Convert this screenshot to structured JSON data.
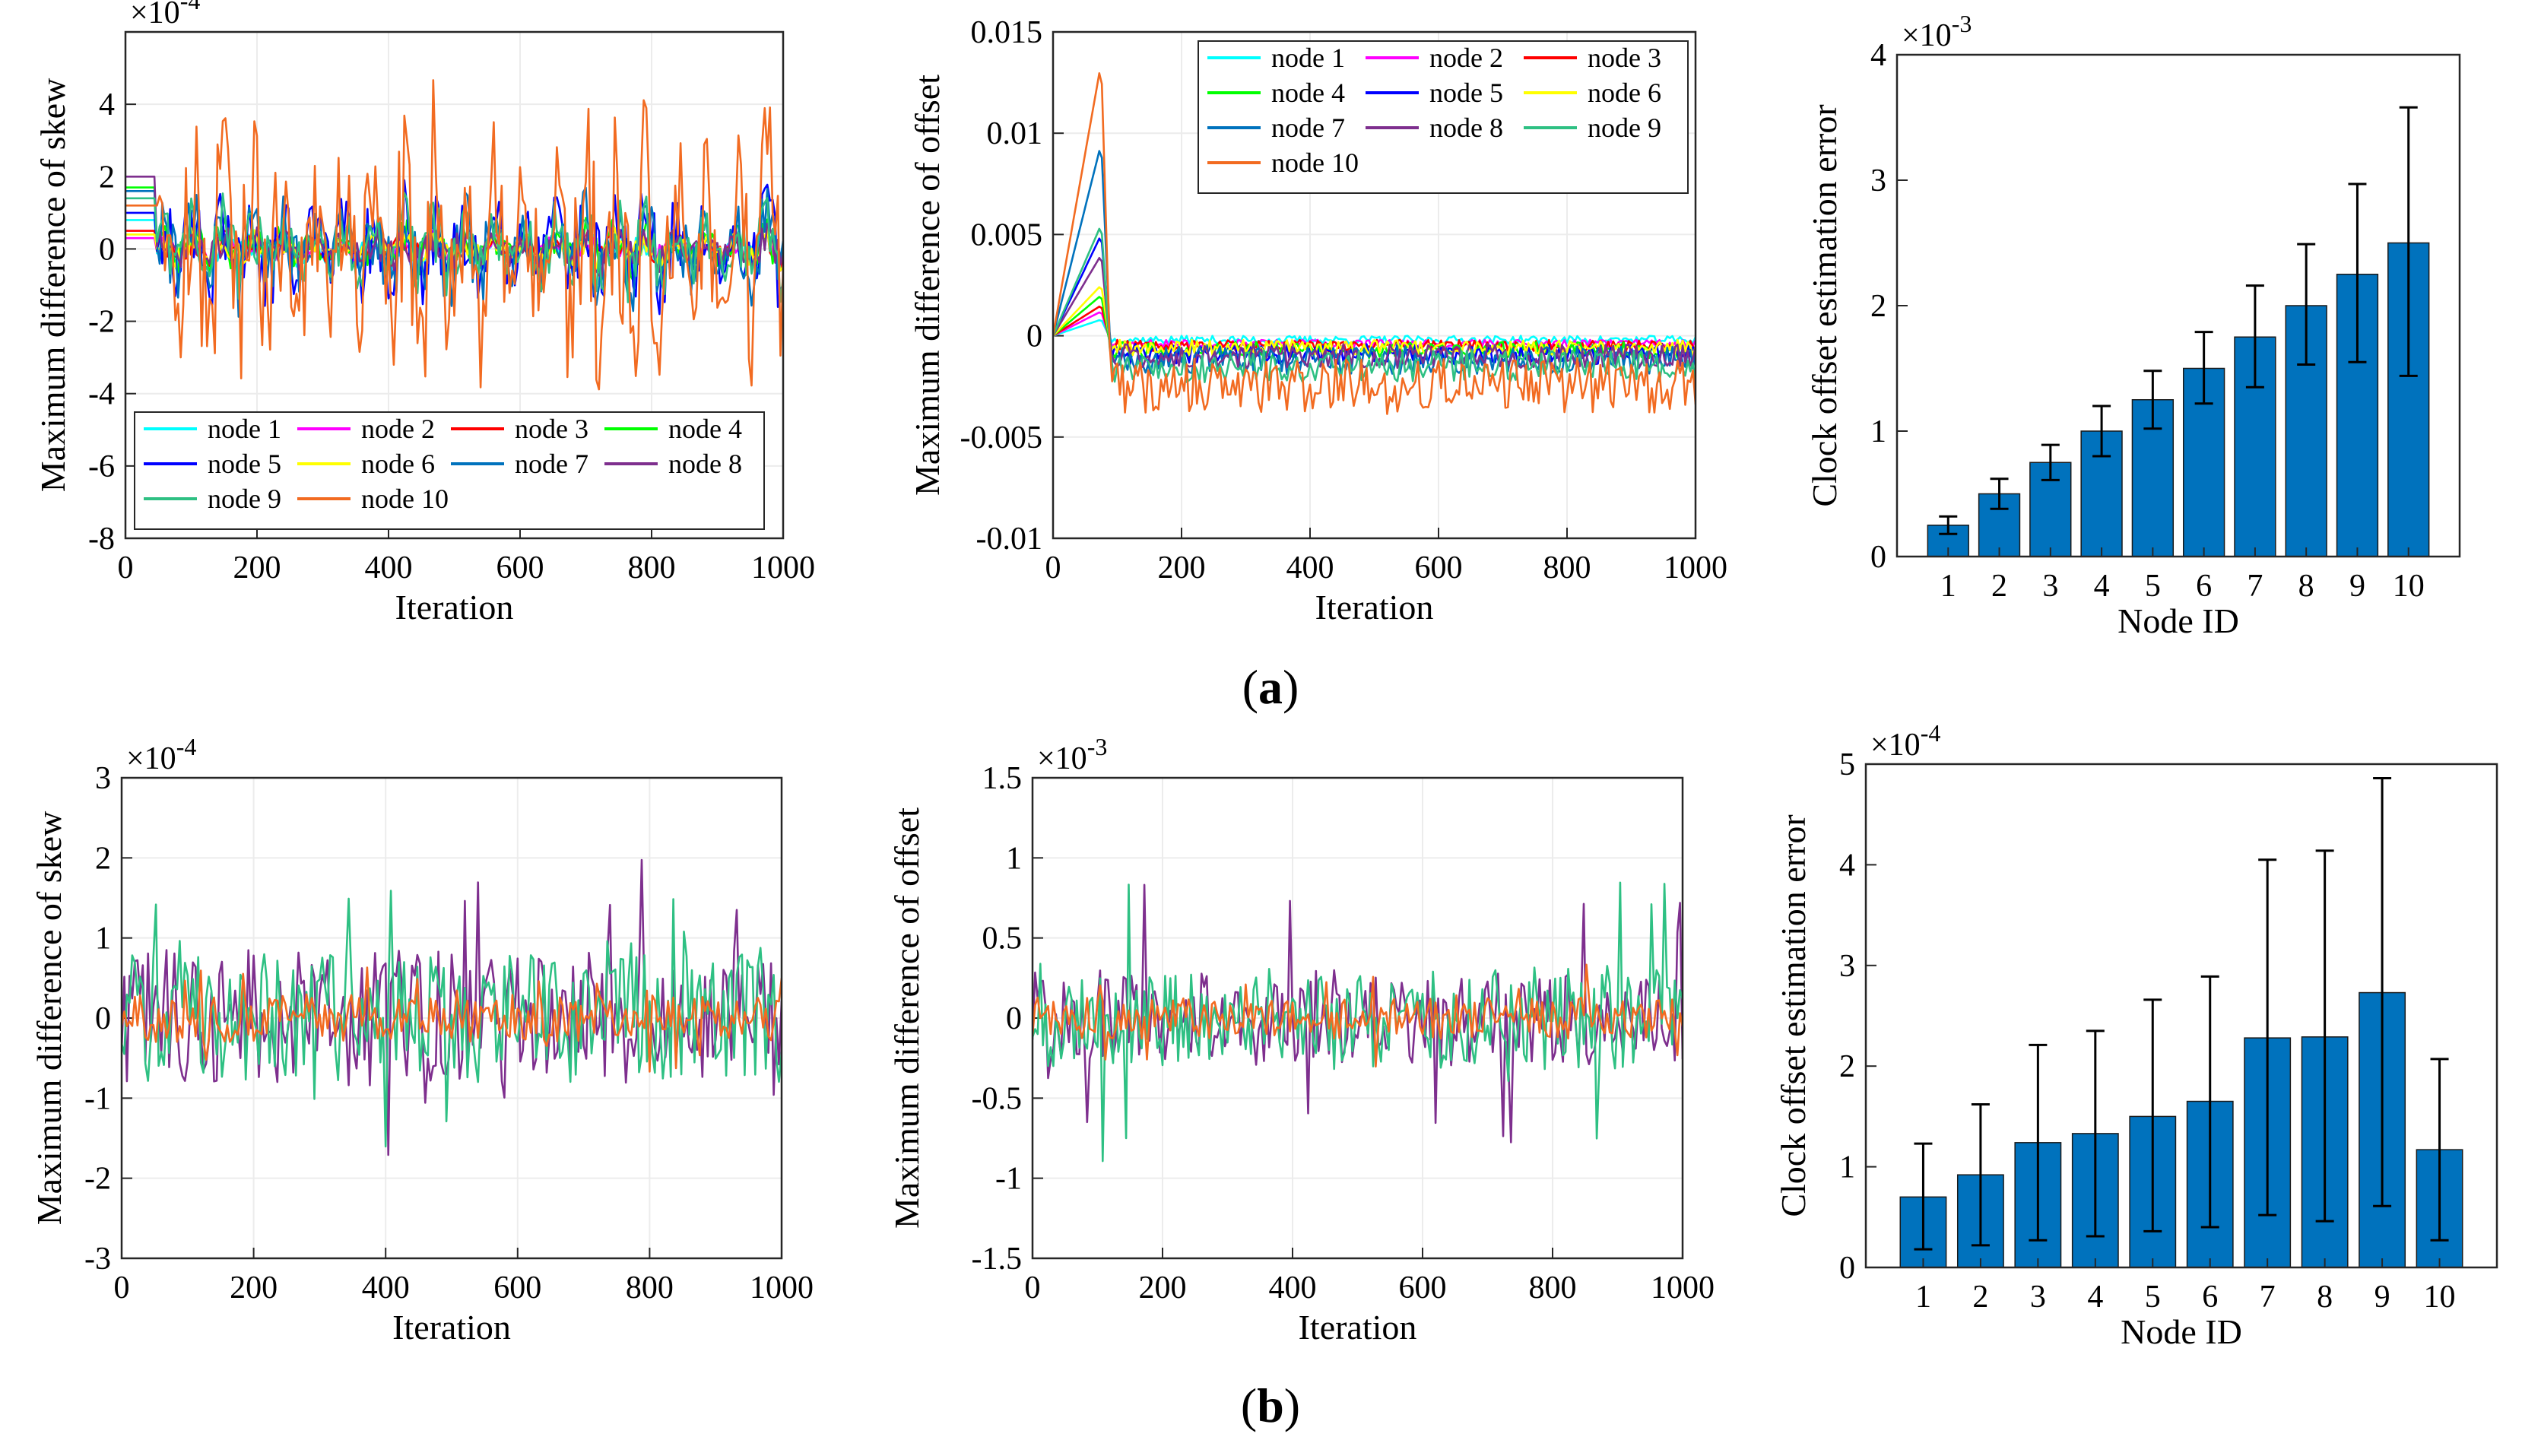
{
  "node_colors": [
    "#00FFFF",
    "#FF00FF",
    "#FF0000",
    "#00FF00",
    "#0000FF",
    "#FFFF00",
    "#0072BD",
    "#7E2F8E",
    "#2EC083",
    "#F26B21"
  ],
  "bar_color": "#0072BD",
  "panel_labels": {
    "a": "(a)",
    "b": "(b)",
    "a_letter": "a",
    "b_letter": "b"
  },
  "chart_data": [
    {
      "id": "a1",
      "type": "line",
      "ylabel": "Maximum difference of skew",
      "xlabel": "Iteration",
      "exponent_base": "×10",
      "exponent_power": "-4",
      "xlim": [
        0,
        1000
      ],
      "ylim": [
        -8,
        6
      ],
      "xticks": [
        0,
        200,
        400,
        600,
        800,
        1000
      ],
      "xtick_labels": [
        "0",
        "200",
        "400",
        "600",
        "800",
        "1000"
      ],
      "yticks": [
        -8,
        -6,
        -4,
        -2,
        0,
        2,
        4
      ],
      "ytick_labels": [
        "-8",
        "-6",
        "-4",
        "-2",
        "0",
        "2",
        "4"
      ],
      "legend": {
        "placement": "bottom-left",
        "columns": 4,
        "entries": [
          "node 1",
          "node 2",
          "node 3",
          "node 4",
          "node 5",
          "node 6",
          "node 7",
          "node 8",
          "node 9",
          "node 10"
        ]
      },
      "series": [
        {
          "name": "node 1",
          "initial": 0.8,
          "amp": 0.45
        },
        {
          "name": "node 2",
          "initial": 0.3,
          "amp": 0.35
        },
        {
          "name": "node 3",
          "initial": 0.5,
          "amp": 0.4
        },
        {
          "name": "node 4",
          "initial": 1.7,
          "amp": 0.6
        },
        {
          "name": "node 5",
          "initial": 1.0,
          "amp": 1.3
        },
        {
          "name": "node 6",
          "initial": 0.4,
          "amp": 0.4
        },
        {
          "name": "node 7",
          "initial": 1.6,
          "amp": 1.2
        },
        {
          "name": "node 8",
          "initial": 2.0,
          "amp": 0.5
        },
        {
          "name": "node 9",
          "initial": 1.4,
          "amp": 1.0
        },
        {
          "name": "node 10",
          "initial": 1.2,
          "amp": 3.0
        }
      ]
    },
    {
      "id": "a2",
      "type": "line",
      "ylabel": "Maximum difference of offset",
      "xlabel": "Iteration",
      "xlim": [
        0,
        1000
      ],
      "ylim": [
        -0.01,
        0.015
      ],
      "xticks": [
        0,
        200,
        400,
        600,
        800,
        1000
      ],
      "xtick_labels": [
        "0",
        "200",
        "400",
        "600",
        "800",
        "1000"
      ],
      "yticks": [
        -0.01,
        -0.005,
        0,
        0.005,
        0.01,
        0.015
      ],
      "ytick_labels": [
        "-0.01",
        "-0.005",
        "0",
        "0.005",
        "0.01",
        "0.015"
      ],
      "legend": {
        "placement": "top-right",
        "columns": 3,
        "entries": [
          "node 1",
          "node 2",
          "node 3",
          "node 4",
          "node 5",
          "node 6",
          "node 7",
          "node 8",
          "node 9",
          "node 10"
        ]
      },
      "series": [
        {
          "name": "node 1",
          "peak": 0.0008,
          "level": -0.0002,
          "amp": 0.0002
        },
        {
          "name": "node 2",
          "peak": 0.0012,
          "level": -0.0004,
          "amp": 0.0002
        },
        {
          "name": "node 3",
          "peak": 0.0015,
          "level": -0.0005,
          "amp": 0.0003
        },
        {
          "name": "node 4",
          "peak": 0.002,
          "level": -0.0007,
          "amp": 0.0004
        },
        {
          "name": "node 5",
          "peak": 0.005,
          "level": -0.0009,
          "amp": 0.0005
        },
        {
          "name": "node 6",
          "peak": 0.0025,
          "level": -0.0006,
          "amp": 0.0004
        },
        {
          "name": "node 7",
          "peak": 0.0095,
          "level": -0.0012,
          "amp": 0.0007
        },
        {
          "name": "node 8",
          "peak": 0.004,
          "level": -0.001,
          "amp": 0.0006
        },
        {
          "name": "node 9",
          "peak": 0.0055,
          "level": -0.0015,
          "amp": 0.0008
        },
        {
          "name": "node 10",
          "peak": 0.0135,
          "level": -0.0025,
          "amp": 0.0014
        }
      ]
    },
    {
      "id": "a3",
      "type": "bar",
      "ylabel": "Clock offset estimation error",
      "xlabel": "Node ID",
      "exponent_base": "×10",
      "exponent_power": "-3",
      "ylim": [
        0,
        4
      ],
      "yticks": [
        0,
        1,
        2,
        3,
        4
      ],
      "ytick_labels": [
        "0",
        "1",
        "2",
        "3",
        "4"
      ],
      "categories": [
        "1",
        "2",
        "3",
        "4",
        "5",
        "6",
        "7",
        "8",
        "9",
        "10"
      ],
      "values": [
        0.25,
        0.5,
        0.75,
        1.0,
        1.25,
        1.5,
        1.75,
        2.0,
        2.25,
        2.5
      ],
      "err_low": [
        0.18,
        0.38,
        0.61,
        0.8,
        1.02,
        1.22,
        1.35,
        1.53,
        1.55,
        1.44
      ],
      "err_high": [
        0.32,
        0.62,
        0.89,
        1.2,
        1.48,
        1.79,
        2.16,
        2.49,
        2.97,
        3.58
      ]
    },
    {
      "id": "b1",
      "type": "line",
      "ylabel": "Maximum difference of skew",
      "xlabel": "Iteration",
      "exponent_base": "×10",
      "exponent_power": "-4",
      "xlim": [
        0,
        1000
      ],
      "ylim": [
        -3,
        3
      ],
      "xticks": [
        0,
        200,
        400,
        600,
        800,
        1000
      ],
      "xtick_labels": [
        "0",
        "200",
        "400",
        "600",
        "800",
        "1000"
      ],
      "yticks": [
        -3,
        -2,
        -1,
        0,
        1,
        2,
        3
      ],
      "ytick_labels": [
        "-3",
        "-2",
        "-1",
        "0",
        "1",
        "2",
        "3"
      ],
      "series": [
        {
          "name": "node 8",
          "amp": 0.85
        },
        {
          "name": "node 9",
          "amp": 0.8
        },
        {
          "name": "node 10",
          "amp": 0.3
        }
      ]
    },
    {
      "id": "b2",
      "type": "line",
      "ylabel": "Maximum difference of offset",
      "xlabel": "Iteration",
      "exponent_base": "×10",
      "exponent_power": "-3",
      "xlim": [
        0,
        1000
      ],
      "ylim": [
        -1.5,
        1.5
      ],
      "xticks": [
        0,
        200,
        400,
        600,
        800,
        1000
      ],
      "xtick_labels": [
        "0",
        "200",
        "400",
        "600",
        "800",
        "1000"
      ],
      "yticks": [
        -1.5,
        -1,
        -0.5,
        0,
        0.5,
        1,
        1.5
      ],
      "ytick_labels": [
        "-1.5",
        "-1",
        "-0.5",
        "0",
        "0.5",
        "1",
        "1.5"
      ],
      "series": [
        {
          "name": "node 8",
          "amp": 0.3
        },
        {
          "name": "node 9",
          "amp": 0.32
        },
        {
          "name": "node 10",
          "amp": 0.13
        }
      ]
    },
    {
      "id": "b3",
      "type": "bar",
      "ylabel": "Clock offset estimation error",
      "xlabel": "Node ID",
      "exponent_base": "×10",
      "exponent_power": "-4",
      "ylim": [
        0,
        5
      ],
      "yticks": [
        0,
        1,
        2,
        3,
        4,
        5
      ],
      "ytick_labels": [
        "0",
        "1",
        "2",
        "3",
        "4",
        "5"
      ],
      "categories": [
        "1",
        "2",
        "3",
        "4",
        "5",
        "6",
        "7",
        "8",
        "9",
        "10"
      ],
      "values": [
        0.7,
        0.92,
        1.24,
        1.33,
        1.5,
        1.65,
        2.28,
        2.29,
        2.73,
        1.17
      ],
      "err_low": [
        0.18,
        0.22,
        0.27,
        0.31,
        0.36,
        0.4,
        0.52,
        0.46,
        0.61,
        0.27
      ],
      "err_high": [
        1.23,
        1.62,
        2.21,
        2.35,
        2.66,
        2.89,
        4.05,
        4.14,
        4.86,
        2.07
      ]
    }
  ]
}
